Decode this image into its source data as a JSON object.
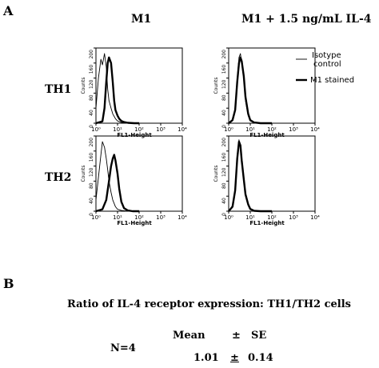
{
  "panels": {
    "a_letter": "A",
    "b_letter": "B"
  },
  "columns": [
    "M1",
    "M1 + 1.5 ng/mL IL-4"
  ],
  "rows": [
    "TH1",
    "TH2"
  ],
  "legend": {
    "isotype": "Isotype control",
    "stained": "M1 stained"
  },
  "chart_data": {
    "type": "line",
    "xlabel": "FL1-Height",
    "ylabel": "Counts",
    "x_scale": "log",
    "xlim": [
      1,
      10000
    ],
    "ylim": [
      0,
      200
    ],
    "y_ticks": [
      0,
      40,
      80,
      120,
      160,
      200
    ],
    "x_tick_labels": [
      "10⁰",
      "10¹",
      "10²",
      "10³",
      "10⁴"
    ],
    "histograms": [
      {
        "row": "TH1",
        "column": "M1",
        "series": [
          {
            "name": "Isotype control",
            "x": [
              1,
              1.3,
              1.7,
              2,
              2.5,
              3,
              3.5,
              4,
              5,
              6,
              8,
              10,
              15,
              30,
              100
            ],
            "y": [
              40,
              120,
              170,
              155,
              185,
              150,
              90,
              60,
              40,
              25,
              12,
              6,
              2,
              0,
              0
            ]
          },
          {
            "name": "M1 stained",
            "x": [
              1,
              2,
              2.5,
              3,
              3.5,
              4,
              5,
              6,
              7,
              8,
              10,
              12,
              15,
              20,
              30,
              60,
              100
            ],
            "y": [
              0,
              5,
              40,
              110,
              160,
              175,
              160,
              110,
              60,
              35,
              20,
              12,
              6,
              3,
              1,
              0,
              0
            ]
          }
        ]
      },
      {
        "row": "TH1",
        "column": "M1 + 1.5 ng/mL IL-4",
        "series": [
          {
            "name": "Isotype control",
            "x": [
              1,
              1.5,
              2,
              2.5,
              3,
              3.5,
              4,
              5,
              6,
              8,
              10,
              15,
              30,
              100
            ],
            "y": [
              0,
              10,
              40,
              120,
              175,
              185,
              160,
              120,
              60,
              20,
              6,
              2,
              0,
              0
            ]
          },
          {
            "name": "M1 stained",
            "x": [
              1,
              1.5,
              2,
              2.5,
              3,
              3.5,
              4,
              5,
              6,
              8,
              10,
              15,
              30,
              100
            ],
            "y": [
              0,
              8,
              35,
              110,
              160,
              175,
              165,
              125,
              70,
              25,
              8,
              2,
              0,
              0
            ]
          }
        ]
      },
      {
        "row": "TH2",
        "column": "M1",
        "series": [
          {
            "name": "Isotype control",
            "x": [
              1,
              1.3,
              1.7,
              2,
              2.5,
              3,
              3.5,
              4,
              5,
              6,
              8,
              10,
              15,
              30,
              100
            ],
            "y": [
              30,
              90,
              150,
              185,
              170,
              140,
              110,
              80,
              50,
              30,
              12,
              5,
              2,
              0,
              0
            ]
          },
          {
            "name": "M1 stained",
            "x": [
              1,
              2,
              3,
              4,
              5,
              6,
              7,
              8,
              10,
              12,
              15,
              20,
              30,
              50,
              100
            ],
            "y": [
              0,
              5,
              30,
              80,
              120,
              140,
              150,
              135,
              100,
              60,
              25,
              8,
              2,
              0,
              0
            ]
          }
        ]
      },
      {
        "row": "TH2",
        "column": "M1 + 1.5 ng/mL IL-4",
        "series": [
          {
            "name": "Isotype control",
            "x": [
              1,
              1.5,
              2,
              2.5,
              3,
              3.5,
              4,
              5,
              6,
              8,
              10,
              15,
              30,
              100
            ],
            "y": [
              0,
              15,
              60,
              150,
              190,
              170,
              130,
              80,
              40,
              15,
              5,
              1,
              0,
              0
            ]
          },
          {
            "name": "M1 stained",
            "x": [
              1,
              1.5,
              2,
              2.5,
              3,
              3.5,
              4,
              5,
              6,
              8,
              10,
              15,
              30,
              100
            ],
            "y": [
              0,
              12,
              55,
              140,
              185,
              175,
              135,
              85,
              45,
              18,
              6,
              1,
              0,
              0
            ]
          }
        ]
      }
    ]
  },
  "panel_b": {
    "title": "Ratio of IL-4 receptor expression: TH1/TH2 cells",
    "n_label": "N=4",
    "mean_header": "Mean",
    "pm_symbol": "±",
    "se_header": "SE",
    "mean_value": "1.01",
    "se_value": "0.14"
  }
}
